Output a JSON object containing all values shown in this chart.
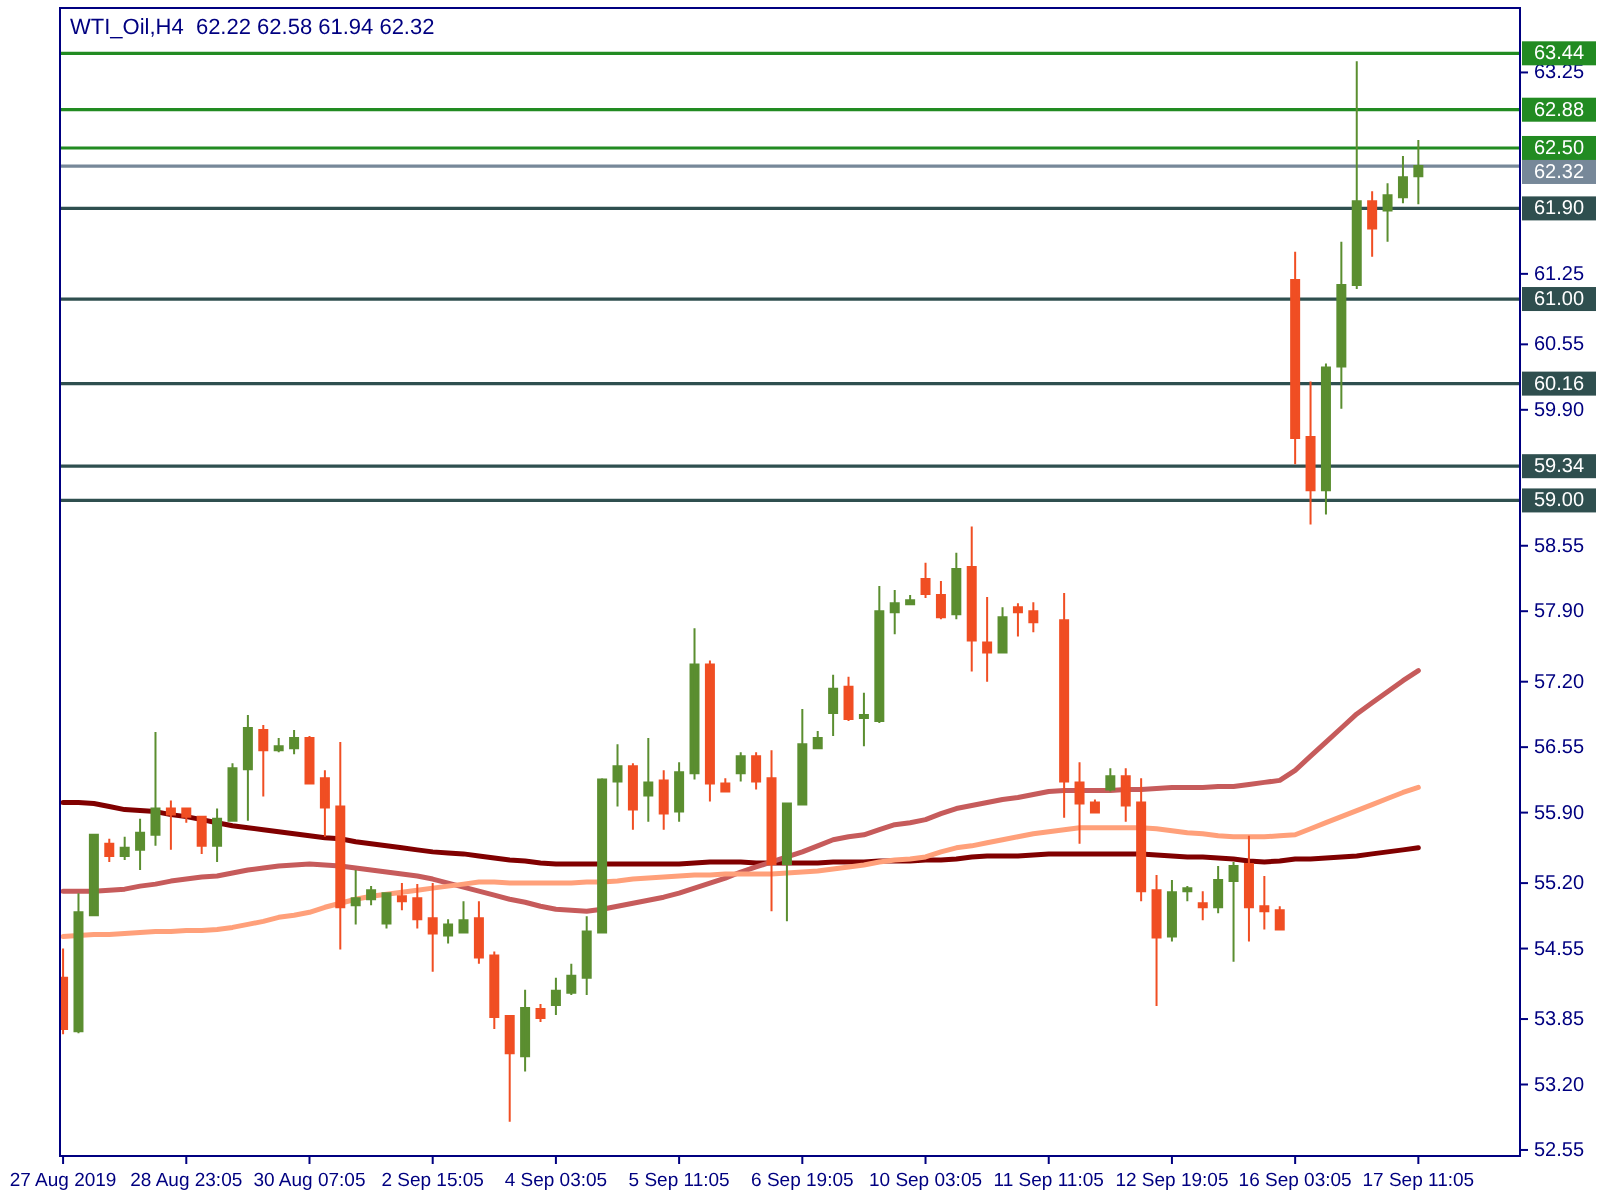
{
  "chart_data": {
    "type": "candlestick",
    "title": "WTI_Oil,H4  62.22 62.58 61.94 62.32",
    "categories": [
      "27 Aug 2019",
      null,
      null,
      null,
      null,
      null,
      null,
      null,
      "28 Aug 23:05",
      null,
      null,
      null,
      null,
      null,
      null,
      null,
      "30 Aug 07:05",
      null,
      null,
      null,
      null,
      null,
      null,
      null,
      "2 Sep 15:05",
      null,
      null,
      null,
      null,
      null,
      null,
      null,
      "4 Sep 03:05",
      null,
      null,
      null,
      null,
      null,
      null,
      null,
      "5 Sep 11:05",
      null,
      null,
      null,
      null,
      null,
      null,
      null,
      "6 Sep 19:05",
      null,
      null,
      null,
      null,
      null,
      null,
      null,
      "10 Sep 03:05",
      null,
      null,
      null,
      null,
      null,
      null,
      null,
      "11 Sep 11:05",
      null,
      null,
      null,
      null,
      null,
      null,
      null,
      "12 Sep 19:05",
      null,
      null,
      null,
      null,
      null,
      null,
      null,
      "16 Sep 03:05",
      null,
      null,
      null,
      null,
      null,
      null,
      null,
      "17 Sep 11:05"
    ],
    "ylim": [
      52.49,
      63.89
    ],
    "yticks": [
      52.55,
      {
        "value": 53.2,
        "label": "53.20"
      },
      53.85,
      54.55,
      {
        "value": 55.2,
        "label": "55.20"
      },
      {
        "value": 55.9,
        "label": "55.90"
      },
      56.55,
      {
        "value": 57.2,
        "label": "57.20"
      },
      {
        "value": 57.9,
        "label": "57.90"
      },
      58.55,
      {
        "value": 59.9,
        "label": "59.90"
      },
      60.55,
      61.25,
      63.25
    ],
    "series": [
      {
        "ohlc": [
          [
            54.26,
            54.55,
            53.7,
            53.75
          ],
          [
            53.73,
            55.1,
            53.71,
            54.91
          ],
          [
            54.88,
            55.68,
            54.87,
            55.68
          ],
          [
            55.59,
            55.64,
            55.41,
            55.47
          ],
          [
            55.47,
            55.66,
            55.43,
            55.55
          ],
          [
            55.53,
            55.84,
            55.33,
            55.7
          ],
          [
            55.68,
            56.7,
            55.57,
            55.94
          ],
          [
            55.94,
            56.02,
            55.53,
            55.88
          ],
          [
            55.94,
            55.94,
            55.8,
            55.86
          ],
          [
            55.86,
            55.86,
            55.49,
            55.57
          ],
          [
            55.57,
            55.94,
            55.41,
            55.84
          ],
          [
            55.82,
            56.39,
            55.82,
            56.34
          ],
          [
            56.33,
            56.87,
            55.82,
            56.74
          ],
          [
            56.72,
            56.77,
            56.06,
            56.52
          ],
          [
            56.52,
            56.64,
            56.5,
            56.56
          ],
          [
            56.54,
            56.72,
            56.48,
            56.64
          ],
          [
            56.64,
            56.66,
            56.19,
            56.19
          ],
          [
            56.24,
            56.32,
            55.66,
            55.95
          ],
          [
            55.96,
            56.6,
            54.54,
            54.96
          ],
          [
            54.98,
            55.33,
            54.79,
            55.05
          ],
          [
            55.04,
            55.17,
            54.98,
            55.13
          ],
          [
            54.8,
            55.1,
            54.75,
            55.1
          ],
          [
            55.07,
            55.2,
            54.93,
            55.02
          ],
          [
            55.05,
            55.19,
            54.75,
            54.84
          ],
          [
            54.85,
            55.2,
            54.32,
            54.7
          ],
          [
            54.68,
            54.84,
            54.6,
            54.79
          ],
          [
            54.71,
            55.02,
            54.71,
            54.83
          ],
          [
            54.85,
            55.02,
            54.4,
            54.46
          ],
          [
            54.48,
            54.52,
            53.75,
            53.87
          ],
          [
            53.88,
            53.89,
            52.83,
            53.51
          ],
          [
            53.48,
            54.14,
            53.33,
            53.96
          ],
          [
            53.95,
            54.0,
            53.82,
            53.86
          ],
          [
            53.99,
            54.26,
            53.89,
            54.13
          ],
          [
            54.11,
            54.4,
            54.09,
            54.28
          ],
          [
            54.26,
            54.87,
            54.09,
            54.72
          ],
          [
            54.71,
            56.24,
            54.71,
            56.23
          ],
          [
            56.21,
            56.58,
            55.96,
            56.36
          ],
          [
            56.36,
            56.39,
            55.73,
            55.93
          ],
          [
            56.07,
            56.64,
            55.81,
            56.2
          ],
          [
            56.22,
            56.32,
            55.73,
            55.89
          ],
          [
            55.91,
            56.4,
            55.81,
            56.3
          ],
          [
            56.29,
            57.73,
            56.23,
            57.37
          ],
          [
            57.37,
            57.41,
            56.01,
            56.19
          ],
          [
            56.19,
            56.24,
            56.11,
            56.11
          ],
          [
            56.29,
            56.5,
            56.21,
            56.46
          ],
          [
            56.46,
            56.5,
            56.13,
            56.21
          ],
          [
            56.24,
            56.52,
            54.92,
            55.39
          ],
          [
            55.39,
            55.99,
            54.82,
            55.99
          ],
          [
            55.98,
            56.93,
            55.97,
            56.58
          ],
          [
            56.54,
            56.71,
            56.54,
            56.64
          ],
          [
            56.89,
            57.27,
            56.66,
            57.13
          ],
          [
            57.15,
            57.25,
            56.81,
            56.83
          ],
          [
            56.84,
            57.09,
            56.56,
            56.87
          ],
          [
            56.81,
            58.15,
            56.79,
            57.9
          ],
          [
            57.89,
            58.11,
            57.67,
            57.98
          ],
          [
            57.97,
            58.06,
            57.96,
            58.01
          ],
          [
            58.22,
            58.38,
            58.03,
            58.07
          ],
          [
            58.06,
            58.2,
            57.82,
            57.84
          ],
          [
            57.87,
            58.48,
            57.82,
            58.32
          ],
          [
            58.34,
            58.74,
            57.3,
            57.61
          ],
          [
            57.59,
            58.04,
            57.2,
            57.49
          ],
          [
            57.49,
            57.94,
            57.49,
            57.84
          ],
          [
            57.94,
            57.98,
            57.65,
            57.89
          ],
          [
            57.9,
            57.99,
            57.69,
            57.79
          ],
          null,
          [
            57.81,
            58.08,
            55.85,
            56.21
          ],
          [
            56.2,
            56.4,
            55.59,
            55.99
          ],
          [
            56.0,
            56.03,
            55.9,
            55.9
          ],
          [
            56.13,
            56.34,
            56.11,
            56.26
          ],
          [
            56.26,
            56.34,
            55.81,
            55.97
          ],
          [
            56.0,
            56.24,
            55.02,
            55.12
          ],
          [
            55.13,
            55.28,
            53.98,
            54.66
          ],
          [
            54.67,
            55.23,
            54.62,
            55.11
          ],
          [
            55.12,
            55.17,
            55.02,
            55.15
          ],
          [
            55.0,
            55.12,
            54.83,
            54.96
          ],
          [
            54.96,
            55.37,
            54.9,
            55.23
          ],
          [
            55.22,
            55.41,
            54.42,
            55.37
          ],
          [
            55.39,
            55.67,
            54.62,
            54.96
          ],
          [
            54.97,
            55.27,
            54.74,
            54.92
          ],
          [
            54.93,
            54.97,
            54.74,
            54.74
          ],
          [
            61.19,
            61.47,
            59.36,
            59.62
          ],
          [
            59.63,
            60.18,
            58.76,
            59.1
          ],
          [
            59.1,
            60.36,
            58.86,
            60.32
          ],
          [
            60.33,
            61.57,
            59.91,
            61.14
          ],
          [
            61.14,
            63.36,
            61.1,
            61.97
          ],
          [
            61.97,
            62.07,
            61.42,
            61.7
          ],
          [
            61.88,
            62.15,
            61.57,
            62.03
          ],
          [
            62.01,
            62.42,
            61.95,
            62.21
          ],
          [
            62.22,
            62.58,
            61.94,
            62.32
          ]
        ],
        "colors": [
          "#f04e23",
          "#5b8e30",
          "#5b8e30",
          "#f04e23",
          "#5b8e30",
          "#5b8e30",
          "#5b8e30",
          "#f04e23",
          "#f04e23",
          "#f04e23",
          "#5b8e30",
          "#5b8e30",
          "#5b8e30",
          "#f04e23",
          "#5b8e30",
          "#5b8e30",
          "#f04e23",
          "#f04e23",
          "#f04e23",
          "#5b8e30",
          "#5b8e30",
          "#5b8e30",
          "#f04e23",
          "#f04e23",
          "#f04e23",
          "#5b8e30",
          "#5b8e30",
          "#f04e23",
          "#f04e23",
          "#f04e23",
          "#5b8e30",
          "#f04e23",
          "#5b8e30",
          "#5b8e30",
          "#5b8e30",
          "#5b8e30",
          "#5b8e30",
          "#f04e23",
          "#5b8e30",
          "#f04e23",
          "#5b8e30",
          "#5b8e30",
          "#f04e23",
          "#f04e23",
          "#5b8e30",
          "#f04e23",
          "#f04e23",
          "#5b8e30",
          "#5b8e30",
          "#5b8e30",
          "#5b8e30",
          "#f04e23",
          "#5b8e30",
          "#5b8e30",
          "#5b8e30",
          "#5b8e30",
          "#f04e23",
          "#f04e23",
          "#5b8e30",
          "#f04e23",
          "#f04e23",
          "#5b8e30",
          "#f04e23",
          "#f04e23",
          null,
          "#f04e23",
          "#f04e23",
          "#f04e23",
          "#5b8e30",
          "#f04e23",
          "#f04e23",
          "#f04e23",
          "#5b8e30",
          "#5b8e30",
          "#f04e23",
          "#5b8e30",
          "#5b8e30",
          "#f04e23",
          "#f04e23",
          "#f04e23",
          "#f04e23",
          "#f04e23",
          "#5b8e30",
          "#5b8e30",
          "#5b8e30",
          "#f04e23",
          "#5b8e30",
          "#5b8e30",
          "#5b8e30"
        ]
      },
      {
        "type": "line",
        "color": "#800000",
        "values": [
          56.0,
          56.0,
          55.99,
          55.96,
          55.93,
          55.92,
          55.91,
          55.88,
          55.86,
          55.83,
          55.8,
          55.77,
          55.75,
          55.73,
          55.71,
          55.69,
          55.67,
          55.65,
          55.64,
          55.61,
          55.59,
          55.57,
          55.55,
          55.53,
          55.51,
          55.5,
          55.49,
          55.47,
          55.45,
          55.43,
          55.42,
          55.4,
          55.39,
          55.39,
          55.39,
          55.39,
          55.39,
          55.39,
          55.39,
          55.39,
          55.39,
          55.4,
          55.41,
          55.41,
          55.41,
          55.4,
          55.4,
          55.4,
          55.4,
          55.4,
          55.41,
          55.41,
          55.41,
          55.42,
          55.42,
          55.42,
          55.43,
          55.43,
          55.44,
          55.46,
          55.47,
          55.47,
          55.47,
          55.48,
          55.49,
          55.49,
          55.49,
          55.49,
          55.49,
          55.49,
          55.49,
          55.48,
          55.47,
          55.46,
          55.46,
          55.45,
          55.44,
          55.42,
          55.41,
          55.42,
          55.44,
          55.44,
          55.45,
          55.46,
          55.47,
          55.49,
          55.51,
          55.53,
          55.55
        ]
      },
      {
        "type": "line",
        "color": "#c65b5b",
        "values": [
          55.12,
          55.12,
          55.12,
          55.13,
          55.14,
          55.17,
          55.19,
          55.22,
          55.24,
          55.26,
          55.27,
          55.3,
          55.33,
          55.35,
          55.37,
          55.38,
          55.39,
          55.38,
          55.37,
          55.35,
          55.33,
          55.31,
          55.29,
          55.27,
          55.24,
          55.2,
          55.16,
          55.12,
          55.08,
          55.04,
          55.01,
          54.97,
          54.94,
          54.93,
          54.92,
          54.94,
          54.97,
          55.0,
          55.03,
          55.06,
          55.1,
          55.15,
          55.2,
          55.25,
          55.31,
          55.36,
          55.41,
          55.46,
          55.51,
          55.57,
          55.63,
          55.66,
          55.68,
          55.73,
          55.78,
          55.8,
          55.83,
          55.89,
          55.94,
          55.97,
          56.0,
          56.03,
          56.05,
          56.08,
          56.11,
          56.12,
          56.12,
          56.12,
          56.12,
          56.13,
          56.13,
          56.14,
          56.15,
          56.15,
          56.15,
          56.16,
          56.16,
          56.18,
          56.2,
          56.22,
          56.32,
          56.46,
          56.6,
          56.74,
          56.88,
          56.99,
          57.1,
          57.21,
          57.31
        ]
      },
      {
        "type": "line",
        "color": "#ffa07a",
        "values": [
          54.67,
          54.68,
          54.69,
          54.69,
          54.7,
          54.71,
          54.72,
          54.72,
          54.73,
          54.73,
          54.74,
          54.76,
          54.79,
          54.82,
          54.86,
          54.88,
          54.91,
          54.96,
          55.0,
          55.04,
          55.07,
          55.09,
          55.11,
          55.13,
          55.15,
          55.17,
          55.19,
          55.21,
          55.21,
          55.2,
          55.2,
          55.2,
          55.2,
          55.2,
          55.21,
          55.21,
          55.22,
          55.24,
          55.25,
          55.26,
          55.27,
          55.28,
          55.28,
          55.29,
          55.29,
          55.29,
          55.29,
          55.3,
          55.31,
          55.32,
          55.34,
          55.36,
          55.38,
          55.41,
          55.43,
          55.44,
          55.46,
          55.51,
          55.55,
          55.57,
          55.6,
          55.63,
          55.66,
          55.69,
          55.71,
          55.73,
          55.75,
          55.75,
          55.75,
          55.75,
          55.75,
          55.74,
          55.72,
          55.7,
          55.69,
          55.67,
          55.66,
          55.66,
          55.66,
          55.67,
          55.68,
          55.74,
          55.8,
          55.86,
          55.92,
          55.98,
          56.04,
          56.1,
          56.15
        ]
      }
    ],
    "ref_lines": [
      {
        "axis": "y",
        "value": 63.44,
        "label": "63.44",
        "color": "#228b22"
      },
      {
        "axis": "y",
        "value": 62.88,
        "label": "62.88",
        "color": "#228b22"
      },
      {
        "axis": "y",
        "value": 62.5,
        "label": "62.50",
        "color": "#228b22"
      },
      {
        "axis": "y",
        "value": 62.32,
        "label": "62.32",
        "color": "#778899"
      },
      {
        "axis": "y",
        "value": 61.9,
        "label": "61.90",
        "color": "#2f4f4f"
      },
      {
        "axis": "y",
        "value": 61.0,
        "label": "61.00",
        "color": "#2f4f4f"
      },
      {
        "axis": "y",
        "value": 60.16,
        "label": "60.16",
        "color": "#2f4f4f"
      },
      {
        "axis": "y",
        "value": 59.34,
        "label": "59.34",
        "color": "#2f4f4f"
      },
      {
        "axis": "y",
        "value": 59.0,
        "label": "59.00",
        "color": "#2f4f4f"
      }
    ]
  }
}
